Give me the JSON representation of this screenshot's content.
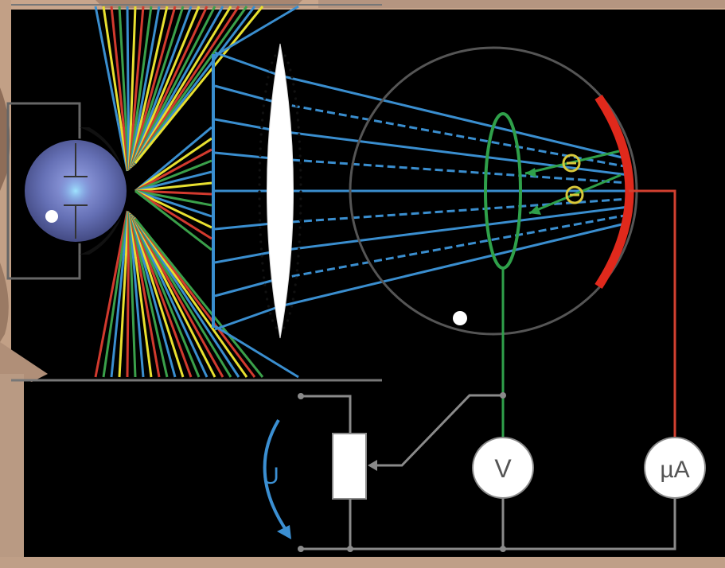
{
  "diagram": {
    "voltage_label": "U",
    "voltmeter_label": "V",
    "ammeter_label": "µA"
  },
  "colors": {
    "background": "#000000",
    "frame_border": "#caa98f",
    "lamp_blue": "#6470b8",
    "ray_blue": "#3a8ecf",
    "ray_yellow": "#e8e030",
    "ray_red": "#d23a2e",
    "ray_green": "#3aa04a",
    "cathode_red": "#e0291c",
    "anode_green": "#2fa04a",
    "electron_yellow": "#d8c83a",
    "circuit_grey": "#8a8a8a",
    "wire_red": "#d24030",
    "arrow_blue": "#3b8fd2",
    "meter_white": "#ffffff"
  },
  "icons": {
    "lamp": "light-source-icon",
    "lens": "converging-lens-icon",
    "tube": "vacuum-tube-icon",
    "electron": "electron-minus-icon",
    "rheostat": "potentiometer-icon",
    "voltmeter": "voltmeter-icon",
    "ammeter": "microammeter-icon"
  }
}
